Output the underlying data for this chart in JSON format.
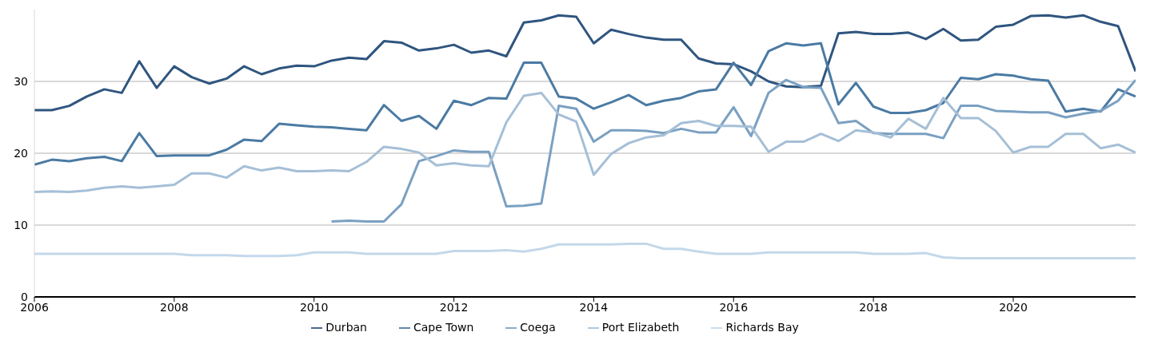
{
  "chart_data": {
    "type": "line",
    "x": [
      2006,
      2006.25,
      2006.5,
      2006.75,
      2007,
      2007.25,
      2007.5,
      2007.75,
      2008,
      2008.25,
      2008.5,
      2008.75,
      2009,
      2009.25,
      2009.5,
      2009.75,
      2010,
      2010.25,
      2010.5,
      2010.75,
      2011,
      2011.25,
      2011.5,
      2011.75,
      2012,
      2012.25,
      2012.5,
      2012.75,
      2013,
      2013.25,
      2013.5,
      2013.75,
      2014,
      2014.25,
      2014.5,
      2014.75,
      2015,
      2015.25,
      2015.5,
      2015.75,
      2016,
      2016.25,
      2016.5,
      2016.75,
      2017,
      2017.25,
      2017.5,
      2017.75,
      2018,
      2018.25,
      2018.5,
      2018.75,
      2019,
      2019.25,
      2019.5,
      2019.75,
      2020,
      2020.25,
      2020.5,
      2020.75,
      2021,
      2021.25,
      2021.5,
      2021.75
    ],
    "series": [
      {
        "name": "Durban",
        "color": "#2f557f",
        "values": [
          26.0,
          26.0,
          26.6,
          27.9,
          28.9,
          28.4,
          32.8,
          29.1,
          32.1,
          30.6,
          29.7,
          30.4,
          32.1,
          31.0,
          31.8,
          32.2,
          32.1,
          32.9,
          33.3,
          33.1,
          35.6,
          35.4,
          34.3,
          34.6,
          35.1,
          34.0,
          34.3,
          33.5,
          38.2,
          38.5,
          39.2,
          39.0,
          35.3,
          37.2,
          36.6,
          36.1,
          35.8,
          35.8,
          33.2,
          32.5,
          32.4,
          31.4,
          30.0,
          29.3,
          29.2,
          29.4,
          36.7,
          36.9,
          36.6,
          36.6,
          36.8,
          35.9,
          37.3,
          35.7,
          35.8,
          37.6,
          37.9,
          39.1,
          39.2,
          38.9,
          39.2,
          38.3,
          37.7,
          31.4
        ]
      },
      {
        "name": "Cape Town",
        "color": "#4a7aa3",
        "values": [
          18.4,
          19.1,
          18.9,
          19.3,
          19.5,
          18.9,
          22.8,
          19.6,
          19.7,
          19.7,
          19.7,
          20.5,
          21.9,
          21.7,
          24.1,
          23.9,
          23.7,
          23.6,
          23.4,
          23.2,
          26.7,
          24.5,
          25.2,
          23.4,
          27.3,
          26.7,
          27.7,
          27.6,
          32.6,
          32.6,
          27.9,
          27.6,
          26.2,
          27.1,
          28.1,
          26.7,
          27.3,
          27.7,
          28.6,
          28.9,
          32.6,
          29.5,
          34.2,
          35.3,
          35.0,
          35.3,
          26.8,
          29.8,
          26.5,
          25.6,
          25.6,
          26.0,
          27.0,
          30.5,
          30.3,
          31.0,
          30.8,
          30.3,
          30.1,
          25.8,
          26.2,
          25.8,
          28.9,
          27.9
        ]
      },
      {
        "name": "Coega",
        "color": "#7aa0c2",
        "values": [
          null,
          null,
          null,
          null,
          null,
          null,
          null,
          null,
          null,
          null,
          null,
          null,
          null,
          null,
          null,
          null,
          null,
          10.5,
          10.6,
          10.5,
          10.5,
          12.9,
          18.9,
          19.6,
          20.4,
          20.2,
          20.2,
          12.6,
          12.7,
          13.0,
          26.6,
          26.2,
          21.6,
          23.2,
          23.2,
          23.1,
          22.8,
          23.4,
          22.9,
          22.9,
          26.4,
          22.4,
          28.4,
          30.2,
          29.2,
          29.1,
          24.2,
          24.5,
          22.8,
          22.7,
          22.7,
          22.7,
          22.1,
          26.6,
          26.6,
          25.9,
          25.8,
          25.7,
          25.7,
          25.0,
          25.5,
          25.9,
          27.3,
          30.2
        ]
      },
      {
        "name": "Port Elizabeth",
        "color": "#a5bfd6",
        "values": [
          14.6,
          14.7,
          14.6,
          14.8,
          15.2,
          15.4,
          15.2,
          15.4,
          15.6,
          17.2,
          17.2,
          16.6,
          18.2,
          17.6,
          18.0,
          17.5,
          17.5,
          17.6,
          17.5,
          18.8,
          20.9,
          20.6,
          20.1,
          18.3,
          18.6,
          18.3,
          18.2,
          24.3,
          28.0,
          28.4,
          25.4,
          24.4,
          17.0,
          19.9,
          21.4,
          22.2,
          22.5,
          24.2,
          24.5,
          23.8,
          23.8,
          23.7,
          20.2,
          21.6,
          21.6,
          22.7,
          21.7,
          23.2,
          22.9,
          22.2,
          24.8,
          23.4,
          27.7,
          24.9,
          24.9,
          23.1,
          20.1,
          20.9,
          20.9,
          22.7,
          22.7,
          20.7,
          21.2,
          20.1
        ]
      },
      {
        "name": "Richards Bay",
        "color": "#c3d8ea",
        "values": [
          6.0,
          6.0,
          6.0,
          6.0,
          6.0,
          6.0,
          6.0,
          6.0,
          6.0,
          5.8,
          5.8,
          5.8,
          5.7,
          5.7,
          5.7,
          5.8,
          6.2,
          6.2,
          6.2,
          6.0,
          6.0,
          6.0,
          6.0,
          6.0,
          6.4,
          6.4,
          6.4,
          6.5,
          6.3,
          6.7,
          7.3,
          7.3,
          7.3,
          7.3,
          7.4,
          7.4,
          6.7,
          6.7,
          6.3,
          6.0,
          6.0,
          6.0,
          6.2,
          6.2,
          6.2,
          6.2,
          6.2,
          6.2,
          6.0,
          6.0,
          6.0,
          6.1,
          5.5,
          5.4,
          5.4,
          5.4,
          5.4,
          5.4,
          5.4,
          5.4,
          5.4,
          5.4,
          5.4,
          5.4
        ]
      }
    ],
    "xlim": [
      2006,
      2021.75
    ],
    "xticks": [
      2006,
      2008,
      2010,
      2012,
      2014,
      2016,
      2018,
      2020
    ],
    "ylim": [
      0,
      40
    ],
    "yticks": [
      0,
      10,
      20,
      30
    ],
    "grid": "y",
    "legend": "bottom",
    "marker": "none",
    "line_style": "solid"
  }
}
